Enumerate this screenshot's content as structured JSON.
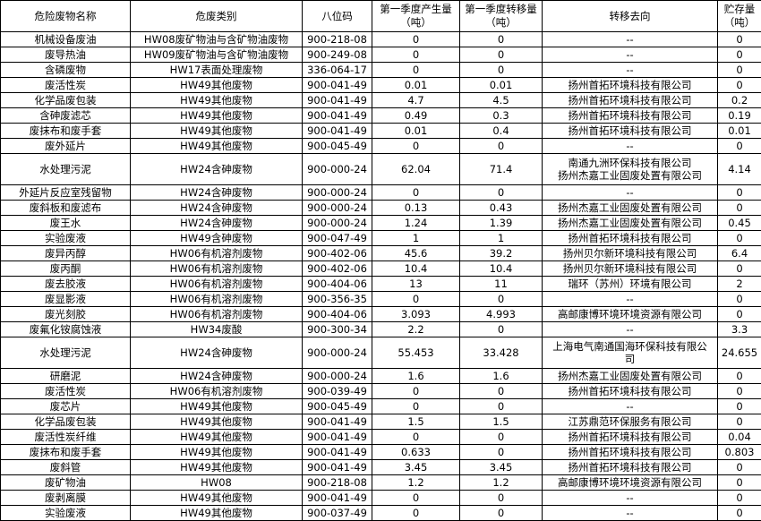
{
  "headers": [
    "危险废物名称",
    "危废类别",
    "八位码",
    "第一季度产生量\n（吨）",
    "第一季度转移量\n（吨）",
    "转移去向",
    "贮存量\n（吨）"
  ],
  "rows": [
    [
      "机械设备废油",
      "HW08废矿物油与含矿物油废物",
      "900-218-08",
      "0",
      "0",
      "--",
      "0"
    ],
    [
      "废导热油",
      "HW09废矿物油与含矿物油废物",
      "900-249-08",
      "0",
      "0",
      "--",
      "0"
    ],
    [
      "含磷废物",
      "HW17表面处理废物",
      "336-064-17",
      "0",
      "0",
      "--",
      "0"
    ],
    [
      "废活性炭",
      "HW49其他废物",
      "900-041-49",
      "0.01",
      "0.01",
      "扬州首拓环境科技有限公司",
      "0"
    ],
    [
      "化学品废包装",
      "HW49其他废物",
      "900-041-49",
      "4.7",
      "4.5",
      "扬州首拓环境科技有限公司",
      "0.2"
    ],
    [
      "含砷废滤芯",
      "HW49其他废物",
      "900-041-49",
      "0.49",
      "0.3",
      "扬州首拓环境科技有限公司",
      "0.19"
    ],
    [
      "废抹布和废手套",
      "HW49其他废物",
      "900-041-49",
      "0.01",
      "0.4",
      "扬州首拓环境科技有限公司",
      "0.01"
    ],
    [
      "废外延片",
      "HW49其他废物",
      "900-045-49",
      "0",
      "0",
      "--",
      "0"
    ],
    [
      "水处理污泥",
      "HW24含砷废物",
      "900-000-24",
      "62.04",
      "71.4",
      "南通九洲环保科技有限公司\n扬州杰嘉工业固废处置有限公司",
      "4.14"
    ],
    [
      "外延片反应室残留物",
      "HW24含砷废物",
      "900-000-24",
      "0",
      "0",
      "--",
      "0"
    ],
    [
      "废斜板和废滤布",
      "HW24含砷废物",
      "900-000-24",
      "0.13",
      "0.43",
      "扬州杰嘉工业固废处置有限公司",
      "0"
    ],
    [
      "废王水",
      "HW24含砷废物",
      "900-000-24",
      "1.24",
      "1.39",
      "扬州杰嘉工业固废处置有限公司",
      "0.45"
    ],
    [
      "实验废液",
      "HW49含砷废物",
      "900-047-49",
      "1",
      "1",
      "扬州首拓环境科技有限公司",
      "0"
    ],
    [
      "废异丙醇",
      "HW06有机溶剂废物",
      "900-402-06",
      "45.6",
      "39.2",
      "扬州贝尔新环境科技有限公司",
      "6.4"
    ],
    [
      "废丙酮",
      "HW06有机溶剂废物",
      "900-402-06",
      "10.4",
      "10.4",
      "扬州贝尔新环境科技有限公司",
      "0"
    ],
    [
      "废去胶液",
      "HW06有机溶剂废物",
      "900-404-06",
      "13",
      "11",
      "瑞环（苏州）环境有限公司",
      "2"
    ],
    [
      "废显影液",
      "HW06有机溶剂废物",
      "900-356-35",
      "0",
      "0",
      "--",
      "0"
    ],
    [
      "废光刻胶",
      "HW06有机溶剂废物",
      "900-404-06",
      "3.093",
      "4.993",
      "高邮康博环境环境资源有限公司",
      "0"
    ],
    [
      "废氟化铵腐蚀液",
      "HW34废酸",
      "900-300-34",
      "2.2",
      "0",
      "--",
      "3.3"
    ],
    [
      "水处理污泥",
      "HW24含砷废物",
      "900-000-24",
      "55.453",
      "33.428",
      "上海电气南通国海环保科技有限公\n司",
      "24.655"
    ],
    [
      "研磨泥",
      "HW24含砷废物",
      "900-000-24",
      "1.6",
      "1.6",
      "扬州杰嘉工业固废处置有限公司",
      "0"
    ],
    [
      "废活性炭",
      "HW06有机溶剂废物",
      "900-039-49",
      "0",
      "0",
      "扬州首拓环境科技有限公司",
      "0"
    ],
    [
      "废芯片",
      "HW49其他废物",
      "900-045-49",
      "0",
      "0",
      "--",
      "0"
    ],
    [
      "化学品废包装",
      "HW49其他废物",
      "900-041-49",
      "1.5",
      "1.5",
      "江苏鼎范环保服务有限公司",
      "0"
    ],
    [
      "废活性炭纤维",
      "HW49其他废物",
      "900-041-49",
      "0",
      "0",
      "扬州首拓环境科技有限公司",
      "0.04"
    ],
    [
      "废抹布和废手套",
      "HW49其他废物",
      "900-041-49",
      "0.633",
      "0",
      "扬州首拓环境科技有限公司",
      "0.803"
    ],
    [
      "废斜管",
      "HW49其他废物",
      "900-041-49",
      "3.45",
      "3.45",
      "扬州首拓环境科技有限公司",
      "0"
    ],
    [
      "废矿物油",
      "HW08",
      "900-218-08",
      "1.2",
      "1.2",
      "高邮康博环境环境资源有限公司",
      "0"
    ],
    [
      "废剥离膜",
      "HW49其他废物",
      "900-041-49",
      "0",
      "0",
      "--",
      "0"
    ],
    [
      "实验废液",
      "HW49其他废物",
      "900-037-49",
      "0",
      "0",
      "--",
      "0"
    ]
  ]
}
